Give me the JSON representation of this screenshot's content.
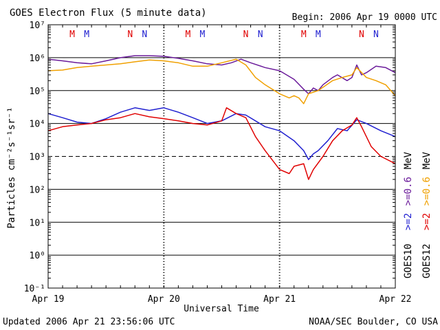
{
  "chart_data": {
    "type": "line",
    "title": "GOES Electron Flux (5 minute data)",
    "begin_label": "Begin: 2006 Apr 19 0000 UTC",
    "ylabel": "Particles cm⁻²s⁻¹sr⁻¹",
    "xlabel": "Universal Time",
    "y_log_scale": true,
    "ylim": [
      0.1,
      10000000
    ],
    "y_ticks": [
      {
        "value": 10000000,
        "label": "10⁷"
      },
      {
        "value": 1000000,
        "label": "10⁶"
      },
      {
        "value": 100000,
        "label": "10⁵"
      },
      {
        "value": 10000,
        "label": "10⁴"
      },
      {
        "value": 1000,
        "label": "10³"
      },
      {
        "value": 100,
        "label": "10²"
      },
      {
        "value": 10,
        "label": "10¹"
      },
      {
        "value": 1,
        "label": "10⁰"
      },
      {
        "value": 0.1,
        "label": "10⁻¹"
      }
    ],
    "xlim": [
      "2006-04-19",
      "2006-04-22"
    ],
    "x_ticks": [
      {
        "value": "2006-04-19",
        "label": "Apr 19"
      },
      {
        "value": "2006-04-20",
        "label": "Apr 20"
      },
      {
        "value": "2006-04-21",
        "label": "Apr 21"
      },
      {
        "value": "2006-04-22",
        "label": "Apr 22"
      }
    ],
    "threshold_line": 1000,
    "grid": true,
    "markers": [
      {
        "label": "M",
        "time": "2006-04-19 05:00",
        "color": "#e00000"
      },
      {
        "label": "M",
        "time": "2006-04-19 08:00",
        "color": "#2020d0"
      },
      {
        "label": "N",
        "time": "2006-04-19 17:00",
        "color": "#e00000"
      },
      {
        "label": "N",
        "time": "2006-04-19 20:00",
        "color": "#2020d0"
      },
      {
        "label": "M",
        "time": "2006-04-20 05:00",
        "color": "#e00000"
      },
      {
        "label": "M",
        "time": "2006-04-20 08:00",
        "color": "#2020d0"
      },
      {
        "label": "N",
        "time": "2006-04-20 17:00",
        "color": "#e00000"
      },
      {
        "label": "N",
        "time": "2006-04-20 20:00",
        "color": "#2020d0"
      },
      {
        "label": "M",
        "time": "2006-04-21 05:00",
        "color": "#e00000"
      },
      {
        "label": "M",
        "time": "2006-04-21 08:00",
        "color": "#2020d0"
      },
      {
        "label": "N",
        "time": "2006-04-21 17:00",
        "color": "#e00000"
      },
      {
        "label": "N",
        "time": "2006-04-21 20:00",
        "color": "#2020d0"
      }
    ],
    "legend": {
      "placement": "right",
      "satellites": [
        {
          "label": "GOES10",
          "entries": [
            {
              "label": ">=2",
              "color": "#2020d0"
            },
            {
              "label": ">=0.6",
              "color": "#6a1a9a"
            }
          ]
        },
        {
          "label": "GOES12",
          "entries": [
            {
              "label": ">=2",
              "color": "#e00000"
            },
            {
              "label": ">=0.6",
              "color": "#f0a000"
            }
          ]
        }
      ],
      "unit": "MeV"
    },
    "series": [
      {
        "color": "#6a1a9a",
        "points": [
          [
            "2006-04-19 00:00",
            900000
          ],
          [
            "2006-04-19 03:00",
            800000
          ],
          [
            "2006-04-19 06:00",
            700000
          ],
          [
            "2006-04-19 09:00",
            650000
          ],
          [
            "2006-04-19 12:00",
            800000
          ],
          [
            "2006-04-19 15:00",
            1000000
          ],
          [
            "2006-04-19 18:00",
            1150000
          ],
          [
            "2006-04-19 21:00",
            1150000
          ],
          [
            "2006-04-20 00:00",
            1100000
          ],
          [
            "2006-04-20 03:00",
            950000
          ],
          [
            "2006-04-20 06:00",
            800000
          ],
          [
            "2006-04-20 09:00",
            650000
          ],
          [
            "2006-04-20 12:00",
            600000
          ],
          [
            "2006-04-20 14:00",
            700000
          ],
          [
            "2006-04-20 16:00",
            900000
          ],
          [
            "2006-04-20 18:00",
            700000
          ],
          [
            "2006-04-20 21:00",
            500000
          ],
          [
            "2006-04-21 00:00",
            400000
          ],
          [
            "2006-04-21 03:00",
            220000
          ],
          [
            "2006-04-21 05:00",
            110000
          ],
          [
            "2006-04-21 06:00",
            80000
          ],
          [
            "2006-04-21 07:00",
            120000
          ],
          [
            "2006-04-21 08:00",
            100000
          ],
          [
            "2006-04-21 09:00",
            150000
          ],
          [
            "2006-04-21 11:00",
            250000
          ],
          [
            "2006-04-21 12:00",
            300000
          ],
          [
            "2006-04-21 14:00",
            200000
          ],
          [
            "2006-04-21 15:00",
            250000
          ],
          [
            "2006-04-21 16:00",
            600000
          ],
          [
            "2006-04-21 17:00",
            300000
          ],
          [
            "2006-04-21 18:00",
            350000
          ],
          [
            "2006-04-21 20:00",
            550000
          ],
          [
            "2006-04-21 22:00",
            500000
          ],
          [
            "2006-04-22 00:00",
            350000
          ]
        ]
      },
      {
        "color": "#f0a000",
        "points": [
          [
            "2006-04-19 00:00",
            400000
          ],
          [
            "2006-04-19 03:00",
            420000
          ],
          [
            "2006-04-19 06:00",
            500000
          ],
          [
            "2006-04-19 09:00",
            550000
          ],
          [
            "2006-04-19 12:00",
            600000
          ],
          [
            "2006-04-19 15:00",
            650000
          ],
          [
            "2006-04-19 18:00",
            750000
          ],
          [
            "2006-04-19 21:00",
            850000
          ],
          [
            "2006-04-20 00:00",
            800000
          ],
          [
            "2006-04-20 03:00",
            700000
          ],
          [
            "2006-04-20 06:00",
            550000
          ],
          [
            "2006-04-20 09:00",
            550000
          ],
          [
            "2006-04-20 12:00",
            700000
          ],
          [
            "2006-04-20 15:00",
            900000
          ],
          [
            "2006-04-20 17:00",
            600000
          ],
          [
            "2006-04-20 19:00",
            250000
          ],
          [
            "2006-04-20 21:00",
            150000
          ],
          [
            "2006-04-21 00:00",
            80000
          ],
          [
            "2006-04-21 02:00",
            60000
          ],
          [
            "2006-04-21 03:00",
            70000
          ],
          [
            "2006-04-21 04:00",
            60000
          ],
          [
            "2006-04-21 05:00",
            40000
          ],
          [
            "2006-04-21 06:00",
            80000
          ],
          [
            "2006-04-21 08:00",
            100000
          ],
          [
            "2006-04-21 11:00",
            200000
          ],
          [
            "2006-04-21 13:00",
            250000
          ],
          [
            "2006-04-21 15:00",
            300000
          ],
          [
            "2006-04-21 16:00",
            500000
          ],
          [
            "2006-04-21 18:00",
            250000
          ],
          [
            "2006-04-21 20:00",
            200000
          ],
          [
            "2006-04-21 22:00",
            150000
          ],
          [
            "2006-04-22 00:00",
            70000
          ]
        ]
      },
      {
        "color": "#2020d0",
        "points": [
          [
            "2006-04-19 00:00",
            20000
          ],
          [
            "2006-04-19 03:00",
            15000
          ],
          [
            "2006-04-19 06:00",
            11000
          ],
          [
            "2006-04-19 09:00",
            10000
          ],
          [
            "2006-04-19 12:00",
            14000
          ],
          [
            "2006-04-19 15:00",
            22000
          ],
          [
            "2006-04-19 18:00",
            30000
          ],
          [
            "2006-04-19 21:00",
            25000
          ],
          [
            "2006-04-20 00:00",
            30000
          ],
          [
            "2006-04-20 03:00",
            22000
          ],
          [
            "2006-04-20 06:00",
            15000
          ],
          [
            "2006-04-20 09:00",
            10000
          ],
          [
            "2006-04-20 12:00",
            12000
          ],
          [
            "2006-04-20 15:00",
            20000
          ],
          [
            "2006-04-20 17:00",
            18000
          ],
          [
            "2006-04-20 19:00",
            12000
          ],
          [
            "2006-04-20 21:00",
            8000
          ],
          [
            "2006-04-21 00:00",
            6000
          ],
          [
            "2006-04-21 03:00",
            3000
          ],
          [
            "2006-04-21 05:00",
            1500
          ],
          [
            "2006-04-21 06:00",
            800
          ],
          [
            "2006-04-21 07:00",
            1200
          ],
          [
            "2006-04-21 08:00",
            1500
          ],
          [
            "2006-04-21 10:00",
            3000
          ],
          [
            "2006-04-21 12:00",
            7000
          ],
          [
            "2006-04-21 14:00",
            6000
          ],
          [
            "2006-04-21 16:00",
            13000
          ],
          [
            "2006-04-21 18:00",
            10000
          ],
          [
            "2006-04-21 21:00",
            6000
          ],
          [
            "2006-04-22 00:00",
            4000
          ]
        ]
      },
      {
        "color": "#e00000",
        "points": [
          [
            "2006-04-19 00:00",
            6000
          ],
          [
            "2006-04-19 03:00",
            8000
          ],
          [
            "2006-04-19 06:00",
            9000
          ],
          [
            "2006-04-19 09:00",
            10000
          ],
          [
            "2006-04-19 12:00",
            13000
          ],
          [
            "2006-04-19 15:00",
            15000
          ],
          [
            "2006-04-19 18:00",
            20000
          ],
          [
            "2006-04-19 21:00",
            16000
          ],
          [
            "2006-04-20 00:00",
            14000
          ],
          [
            "2006-04-20 03:00",
            12000
          ],
          [
            "2006-04-20 06:00",
            10000
          ],
          [
            "2006-04-20 09:00",
            9000
          ],
          [
            "2006-04-20 12:00",
            12000
          ],
          [
            "2006-04-20 13:00",
            30000
          ],
          [
            "2006-04-20 15:00",
            20000
          ],
          [
            "2006-04-20 17:00",
            15000
          ],
          [
            "2006-04-20 19:00",
            4000
          ],
          [
            "2006-04-20 21:00",
            1500
          ],
          [
            "2006-04-21 00:00",
            400
          ],
          [
            "2006-04-21 02:00",
            300
          ],
          [
            "2006-04-21 03:00",
            500
          ],
          [
            "2006-04-21 05:00",
            600
          ],
          [
            "2006-04-21 06:00",
            200
          ],
          [
            "2006-04-21 07:00",
            400
          ],
          [
            "2006-04-21 09:00",
            1000
          ],
          [
            "2006-04-21 11:00",
            3000
          ],
          [
            "2006-04-21 13:00",
            6000
          ],
          [
            "2006-04-21 15:00",
            9000
          ],
          [
            "2006-04-21 16:00",
            15000
          ],
          [
            "2006-04-21 17:00",
            8000
          ],
          [
            "2006-04-21 19:00",
            2000
          ],
          [
            "2006-04-21 21:00",
            1000
          ],
          [
            "2006-04-22 00:00",
            600
          ]
        ]
      }
    ]
  },
  "footer": {
    "updated": "Updated 2006 Apr 21 23:56:06 UTC",
    "credit": "NOAA/SEC Boulder, CO USA"
  }
}
